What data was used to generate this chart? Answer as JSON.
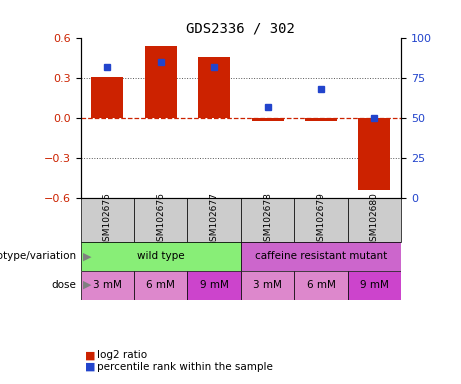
{
  "title": "GDS2336 / 302",
  "samples": [
    "GSM102675",
    "GSM102676",
    "GSM102677",
    "GSM102678",
    "GSM102679",
    "GSM102680"
  ],
  "log2_ratio": [
    0.31,
    0.54,
    0.46,
    -0.02,
    -0.02,
    -0.54
  ],
  "percentile_rank": [
    82,
    85,
    82,
    57,
    68,
    50
  ],
  "bar_color": "#cc2200",
  "dot_color": "#2244cc",
  "ylim_left": [
    -0.6,
    0.6
  ],
  "ylim_right": [
    0,
    100
  ],
  "yticks_left": [
    -0.6,
    -0.3,
    0.0,
    0.3,
    0.6
  ],
  "yticks_right": [
    0,
    25,
    50,
    75,
    100
  ],
  "hline_color": "#cc2200",
  "dotted_color": "#555555",
  "genotype_groups": [
    {
      "label": "wild type",
      "span": [
        0,
        3
      ],
      "color": "#88ee77"
    },
    {
      "label": "caffeine resistant mutant",
      "span": [
        3,
        6
      ],
      "color": "#cc66cc"
    }
  ],
  "doses": [
    "3 mM",
    "6 mM",
    "9 mM",
    "3 mM",
    "6 mM",
    "9 mM"
  ],
  "dose_colors": [
    "#dd88cc",
    "#dd88cc",
    "#cc44cc",
    "#dd88cc",
    "#dd88cc",
    "#cc44cc"
  ],
  "sample_box_color": "#cccccc",
  "label_genotype": "genotype/variation",
  "label_dose": "dose",
  "legend_bar": "log2 ratio",
  "legend_dot": "percentile rank within the sample",
  "title_fontsize": 10,
  "tick_fontsize": 8,
  "label_fontsize": 8,
  "sample_fontsize": 6.5
}
